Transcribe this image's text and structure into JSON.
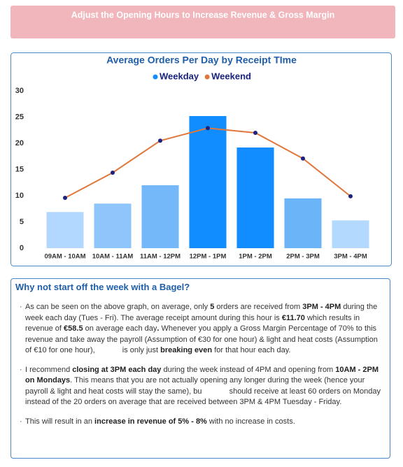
{
  "banner": {
    "title": "Adjust the Opening Hours to Increase Revenue & Gross Margin"
  },
  "chart_data": {
    "type": "bar_line",
    "title": "Average Orders Per Day by Receipt TIme",
    "categories": [
      "09AM - 10AM",
      "10AM - 11AM",
      "11AM - 12PM",
      "12PM - 1PM",
      "1PM - 2PM",
      "2PM - 3PM",
      "3PM - 4PM"
    ],
    "series": [
      {
        "name": "Weekday",
        "type": "bar",
        "color": "#118dff",
        "colors": [
          "#b3d8ff",
          "#8ec6fc",
          "#74b8fa",
          "#118dff",
          "#118dff",
          "#6cb4f8",
          "#b3d9ff"
        ],
        "values": [
          6.9,
          8.5,
          12.0,
          25.2,
          19.2,
          9.5,
          5.3
        ]
      },
      {
        "name": "Weekend",
        "type": "line",
        "color": "#e0773c",
        "marker_color": "#1a2380",
        "values": [
          9.6,
          14.4,
          20.5,
          22.9,
          22.0,
          17.1,
          9.9
        ]
      }
    ],
    "ylim": [
      0,
      30
    ],
    "yticks": [
      0,
      5,
      10,
      15,
      20,
      25,
      30
    ],
    "grid": false
  },
  "text_panel": {
    "title": "Why not start off the week with a Bagel?",
    "bullets": [
      [
        "As can be seen on the above graph, on average, only ",
        "5",
        " orders are received from ",
        "3PM - 4PM",
        " during the week each day (Tues - Fri). The average receipt amount during this hour is ",
        "€11.70",
        " which results in revenue of ",
        "€58.5",
        " on average each day",
        ".",
        " Whenever you apply a Gross Margin Percentage of 70% to this revenue and take away the payroll (Assumption of €30 for one hour) & light and heat costs (Assumption of €10 for one hour),",
        " is only just ",
        "breaking even",
        " for that hour each day."
      ],
      [
        "I recommend ",
        "closing at 3PM each day",
        " during the week instead of 4PM and opening from ",
        "10AM - 2PM on Mondays",
        ". This means that you are not actually opening any longer during the week (hence your payroll & light and heat costs will stay the same), bu",
        " should receive at least 60 orders on Monday instead of the 20 orders on average that are received between 3PM & 4PM Tuesday - Friday."
      ],
      [
        "This will result in an ",
        "increase in revenue of 5% - 8%",
        " with no increase in costs."
      ]
    ]
  }
}
